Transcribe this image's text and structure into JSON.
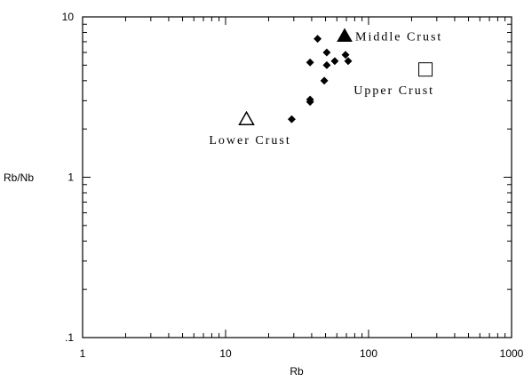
{
  "chart_data": {
    "type": "scatter",
    "xlabel": "Rb",
    "ylabel": "Rb/Nb",
    "xscale": "log",
    "yscale": "log",
    "xlim": [
      1,
      1000
    ],
    "ylim": [
      0.1,
      10
    ],
    "x_tick_labels": [
      "1",
      "10",
      "100",
      "1000"
    ],
    "y_tick_labels": [
      ".1",
      "1",
      "10"
    ],
    "grid": false,
    "series": [
      {
        "marker": "filled-diamond",
        "color": "#000000",
        "points": [
          {
            "x": 29,
            "y": 2.3
          },
          {
            "x": 39,
            "y": 2.95
          },
          {
            "x": 39,
            "y": 3.05
          },
          {
            "x": 44,
            "y": 7.3
          },
          {
            "x": 39,
            "y": 5.2
          },
          {
            "x": 49,
            "y": 4.0
          },
          {
            "x": 51,
            "y": 5.0
          },
          {
            "x": 51,
            "y": 6.0
          },
          {
            "x": 58,
            "y": 5.3
          },
          {
            "x": 69,
            "y": 5.8
          },
          {
            "x": 72,
            "y": 5.3
          }
        ]
      }
    ],
    "reference_points": [
      {
        "label": "Middle Crust",
        "marker": "filled-triangle",
        "x": 68,
        "y": 7.6
      },
      {
        "label": "Upper Crust",
        "marker": "open-square",
        "x": 250,
        "y": 4.7
      },
      {
        "label": "Lower Crust",
        "marker": "open-triangle",
        "x": 14,
        "y": 2.3
      }
    ]
  }
}
